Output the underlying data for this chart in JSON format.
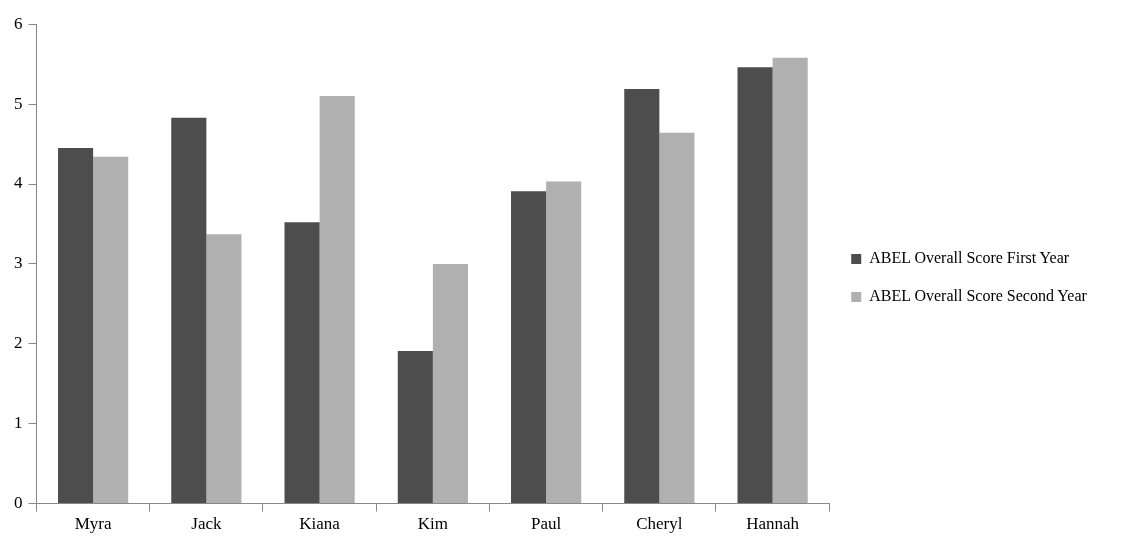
{
  "chart_data": {
    "type": "bar",
    "categories": [
      "Myra",
      "Jack",
      "Kiana",
      "Kim",
      "Paul",
      "Cheryl",
      "Hannah"
    ],
    "series": [
      {
        "name": "ABEL Overall Score First Year",
        "color": "#4d4d4d",
        "values": [
          4.45,
          4.83,
          3.52,
          1.91,
          3.91,
          5.19,
          5.46
        ]
      },
      {
        "name": "ABEL Overall Score Second Year",
        "color": "#b0b0b0",
        "values": [
          4.34,
          3.37,
          5.1,
          3.0,
          4.03,
          4.64,
          5.58
        ]
      }
    ],
    "ylim": [
      0,
      6
    ],
    "yticks": [
      0,
      1,
      2,
      3,
      4,
      5,
      6
    ],
    "grid": false,
    "legend": "right"
  }
}
